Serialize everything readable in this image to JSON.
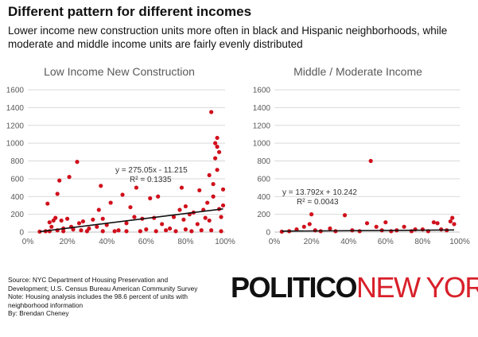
{
  "header": {
    "title": "Different pattern for different incomes",
    "subtitle": "Lower income new construction units more often in black and Hispanic neighborhoods, while moderate and middle income units are fairly evenly distributed"
  },
  "chart_data": [
    {
      "type": "scatter",
      "title": "Low Income New Construction",
      "xlabel": "",
      "ylabel": "",
      "xlim": [
        0,
        1
      ],
      "ylim": [
        0,
        1600
      ],
      "x_ticks": [
        "0%",
        "20%",
        "40%",
        "60%",
        "80%",
        "100%"
      ],
      "y_ticks": [
        "0",
        "200",
        "400",
        "600",
        "800",
        "1000",
        "1200",
        "1400",
        "1600"
      ],
      "grid": true,
      "marker_color": "#d0101c",
      "trendline": {
        "slope": 275.05,
        "intercept": -11.215,
        "equation": "y = 275.05x - 11.215",
        "r_squared": "R² = 0.1335",
        "color": "#111111"
      },
      "points": [
        [
          0.06,
          5
        ],
        [
          0.09,
          10
        ],
        [
          0.1,
          320
        ],
        [
          0.11,
          110
        ],
        [
          0.11,
          10
        ],
        [
          0.12,
          60
        ],
        [
          0.13,
          130
        ],
        [
          0.14,
          160
        ],
        [
          0.15,
          430
        ],
        [
          0.15,
          20
        ],
        [
          0.16,
          580
        ],
        [
          0.17,
          130
        ],
        [
          0.18,
          40
        ],
        [
          0.18,
          10
        ],
        [
          0.2,
          150
        ],
        [
          0.21,
          620
        ],
        [
          0.22,
          60
        ],
        [
          0.23,
          30
        ],
        [
          0.25,
          790
        ],
        [
          0.26,
          100
        ],
        [
          0.27,
          20
        ],
        [
          0.28,
          120
        ],
        [
          0.3,
          10
        ],
        [
          0.31,
          40
        ],
        [
          0.33,
          140
        ],
        [
          0.35,
          60
        ],
        [
          0.36,
          250
        ],
        [
          0.37,
          520
        ],
        [
          0.38,
          150
        ],
        [
          0.38,
          10
        ],
        [
          0.4,
          80
        ],
        [
          0.42,
          330
        ],
        [
          0.44,
          10
        ],
        [
          0.46,
          20
        ],
        [
          0.48,
          420
        ],
        [
          0.5,
          100
        ],
        [
          0.5,
          10
        ],
        [
          0.52,
          280
        ],
        [
          0.54,
          170
        ],
        [
          0.55,
          500
        ],
        [
          0.57,
          10
        ],
        [
          0.58,
          150
        ],
        [
          0.6,
          30
        ],
        [
          0.62,
          380
        ],
        [
          0.64,
          160
        ],
        [
          0.65,
          10
        ],
        [
          0.66,
          400
        ],
        [
          0.68,
          90
        ],
        [
          0.7,
          20
        ],
        [
          0.72,
          40
        ],
        [
          0.74,
          170
        ],
        [
          0.75,
          10
        ],
        [
          0.77,
          250
        ],
        [
          0.78,
          500
        ],
        [
          0.79,
          140
        ],
        [
          0.8,
          30
        ],
        [
          0.8,
          290
        ],
        [
          0.82,
          200
        ],
        [
          0.83,
          10
        ],
        [
          0.84,
          220
        ],
        [
          0.86,
          90
        ],
        [
          0.87,
          470
        ],
        [
          0.88,
          20
        ],
        [
          0.89,
          250
        ],
        [
          0.9,
          160
        ],
        [
          0.91,
          330
        ],
        [
          0.92,
          130
        ],
        [
          0.92,
          640
        ],
        [
          0.93,
          1350
        ],
        [
          0.93,
          20
        ],
        [
          0.94,
          540
        ],
        [
          0.94,
          400
        ],
        [
          0.95,
          1000
        ],
        [
          0.95,
          830
        ],
        [
          0.96,
          1060
        ],
        [
          0.96,
          960
        ],
        [
          0.96,
          700
        ],
        [
          0.97,
          900
        ],
        [
          0.97,
          260
        ],
        [
          0.98,
          170
        ],
        [
          0.98,
          10
        ],
        [
          0.99,
          480
        ],
        [
          0.99,
          300
        ]
      ]
    },
    {
      "type": "scatter",
      "title": "Middle / Moderate Income",
      "xlabel": "",
      "ylabel": "",
      "xlim": [
        0,
        1
      ],
      "ylim": [
        0,
        1600
      ],
      "x_ticks": [
        "0%",
        "20%",
        "40%",
        "60%",
        "80%",
        "100%"
      ],
      "y_ticks": [
        "0",
        "200",
        "400",
        "600",
        "800",
        "1000",
        "1200",
        "1400",
        "1600"
      ],
      "grid": true,
      "marker_color": "#d0101c",
      "trendline": {
        "slope": 13.792,
        "intercept": 10.242,
        "equation": "y = 13.792x + 10.242",
        "r_squared": "R² = 0.0043",
        "color": "#111111"
      },
      "points": [
        [
          0.04,
          5
        ],
        [
          0.08,
          10
        ],
        [
          0.12,
          30
        ],
        [
          0.16,
          60
        ],
        [
          0.19,
          90
        ],
        [
          0.2,
          200
        ],
        [
          0.22,
          20
        ],
        [
          0.25,
          10
        ],
        [
          0.3,
          40
        ],
        [
          0.33,
          10
        ],
        [
          0.38,
          190
        ],
        [
          0.42,
          20
        ],
        [
          0.46,
          10
        ],
        [
          0.5,
          100
        ],
        [
          0.52,
          800
        ],
        [
          0.55,
          60
        ],
        [
          0.58,
          20
        ],
        [
          0.6,
          110
        ],
        [
          0.63,
          10
        ],
        [
          0.66,
          20
        ],
        [
          0.7,
          60
        ],
        [
          0.74,
          10
        ],
        [
          0.76,
          30
        ],
        [
          0.8,
          30
        ],
        [
          0.83,
          10
        ],
        [
          0.86,
          110
        ],
        [
          0.88,
          100
        ],
        [
          0.9,
          30
        ],
        [
          0.93,
          20
        ],
        [
          0.95,
          120
        ],
        [
          0.96,
          160
        ],
        [
          0.97,
          90
        ]
      ]
    }
  ],
  "footer": {
    "source_lines": [
      "Source: NYC Department of Housing Preservation and",
      "Development; U.S. Census Bureau American Community Survey",
      "Note: Housing analysis includes the 98.6 percent of units with",
      "neighborhood information",
      "By: Brendan Cheney"
    ],
    "logo_part1": "POLITICO",
    "logo_part2": "NEW YORK"
  }
}
